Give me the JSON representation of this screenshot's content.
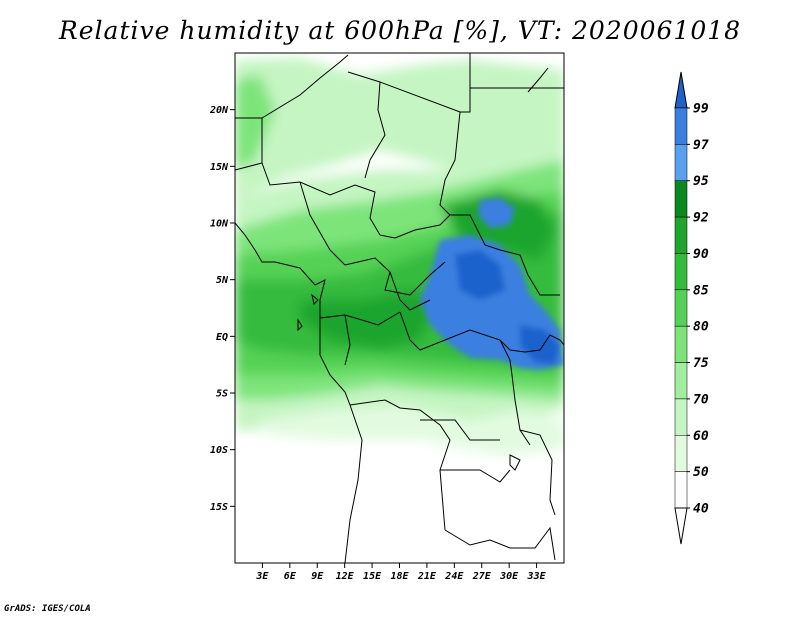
{
  "title": "Relative humidity at 600hPa [%], VT: 2020061018",
  "credit": "GrADS: IGES/COLA",
  "map": {
    "lon_range": [
      0,
      36
    ],
    "lat_range": [
      -20,
      25
    ],
    "lat_ticks": [
      {
        "value": 20,
        "label": "20N"
      },
      {
        "value": 15,
        "label": "15N"
      },
      {
        "value": 10,
        "label": "10N"
      },
      {
        "value": 5,
        "label": "5N"
      },
      {
        "value": 0,
        "label": "EQ"
      },
      {
        "value": -5,
        "label": "5S"
      },
      {
        "value": -10,
        "label": "10S"
      },
      {
        "value": -15,
        "label": "15S"
      }
    ],
    "lon_ticks": [
      {
        "value": 3,
        "label": "3E"
      },
      {
        "value": 6,
        "label": "6E"
      },
      {
        "value": 9,
        "label": "9E"
      },
      {
        "value": 12,
        "label": "12E"
      },
      {
        "value": 15,
        "label": "15E"
      },
      {
        "value": 18,
        "label": "18E"
      },
      {
        "value": 21,
        "label": "21E"
      },
      {
        "value": 24,
        "label": "24E"
      },
      {
        "value": 27,
        "label": "27E"
      },
      {
        "value": 30,
        "label": "30E"
      },
      {
        "value": 33,
        "label": "33E"
      }
    ]
  },
  "colorbar": {
    "levels": [
      {
        "label": "99",
        "color": "#1f62cc"
      },
      {
        "label": "97",
        "color": "#3a7fe0"
      },
      {
        "label": "95",
        "color": "#5aa0f0"
      },
      {
        "label": "92",
        "color": "#0a8a1e"
      },
      {
        "label": "90",
        "color": "#1fa52d"
      },
      {
        "label": "85",
        "color": "#35bb3c"
      },
      {
        "label": "80",
        "color": "#55d255"
      },
      {
        "label": "75",
        "color": "#7de47a"
      },
      {
        "label": "70",
        "color": "#a2eea0"
      },
      {
        "label": "60",
        "color": "#c4f5c2"
      },
      {
        "label": "50",
        "color": "#e2fbe0"
      },
      {
        "label": "40",
        "color": "#ffffff"
      }
    ],
    "top_triangle_color": "#1f62cc",
    "bottom_triangle_color": "#ffffff"
  }
}
